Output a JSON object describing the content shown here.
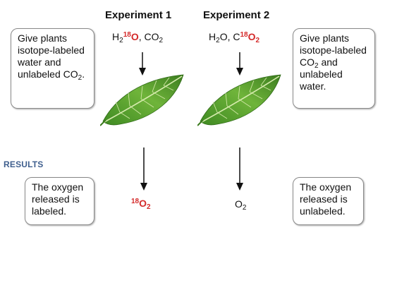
{
  "experiment1": {
    "title": "Experiment 1",
    "input": {
      "h": "H",
      "h2": "2",
      "iso": "18",
      "o": "O",
      "comma_co": ", CO",
      "co2": "2"
    },
    "output": {
      "iso": "18",
      "o": "O",
      "sub": "2"
    }
  },
  "experiment2": {
    "title": "Experiment 2",
    "input": {
      "h": "H",
      "h2": "2",
      "o_comma_c": "O, C",
      "iso": "18",
      "o": "O",
      "o2": "2"
    },
    "output": {
      "o": "O",
      "sub": "2"
    }
  },
  "left_box": {
    "text_1": "Give plants isotope-labeled water and unlabeled CO",
    "sub": "2",
    "text_2": "."
  },
  "right_box": {
    "text_1": "Give plants isotope-labeled CO",
    "sub": "2",
    "text_2": " and unlabeled water."
  },
  "results_label": "RESULTS",
  "left_result": "The oxygen released is labeled.",
  "right_result": "The oxygen released is unlabeled.",
  "colors": {
    "isotope_red": "#d42a2a",
    "results_blue": "#3f5f8e",
    "leaf_green": "#4f9a2e"
  }
}
